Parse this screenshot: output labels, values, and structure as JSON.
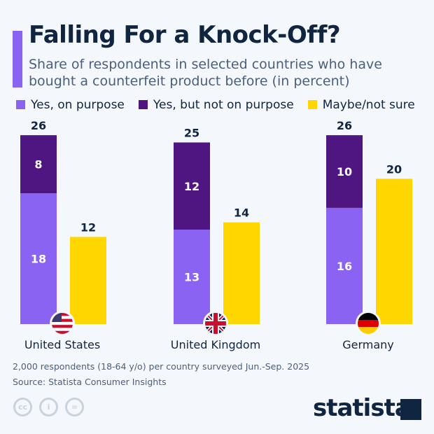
{
  "title": "Falling For a Knock-Off?",
  "subtitle": "Share of respondents in selected countries who have bought a counterfeit product before (in percent)",
  "footnote": "2,000 respondents (18-64 y/o) per country surveyed Jun.-Sep. 2025",
  "source": "Source: Statista Consumer Insights",
  "brand": "statista",
  "icons": [
    "cc-icon",
    "attribution-icon",
    "no-derivatives-icon"
  ],
  "chart_data": {
    "type": "bar",
    "stacked_partial": true,
    "categories": [
      "United States",
      "United Kingdom",
      "Germany"
    ],
    "flags": [
      "us-flag-icon",
      "uk-flag-icon",
      "germany-flag-icon"
    ],
    "series": [
      {
        "name": "Yes, on purpose",
        "values": [
          18,
          13,
          16
        ],
        "color": "#8b63f2",
        "stack": "yes"
      },
      {
        "name": "Yes, but not on purpose",
        "values": [
          8,
          12,
          10
        ],
        "color": "#4f1580",
        "stack": "yes"
      },
      {
        "name": "Maybe/not sure",
        "values": [
          12,
          14,
          20
        ],
        "color": "#ffd600",
        "stack": "maybe"
      }
    ],
    "totals": [
      26,
      25,
      26
    ],
    "ylim": [
      0,
      26
    ],
    "grid": false,
    "legend_position": "top-left"
  }
}
